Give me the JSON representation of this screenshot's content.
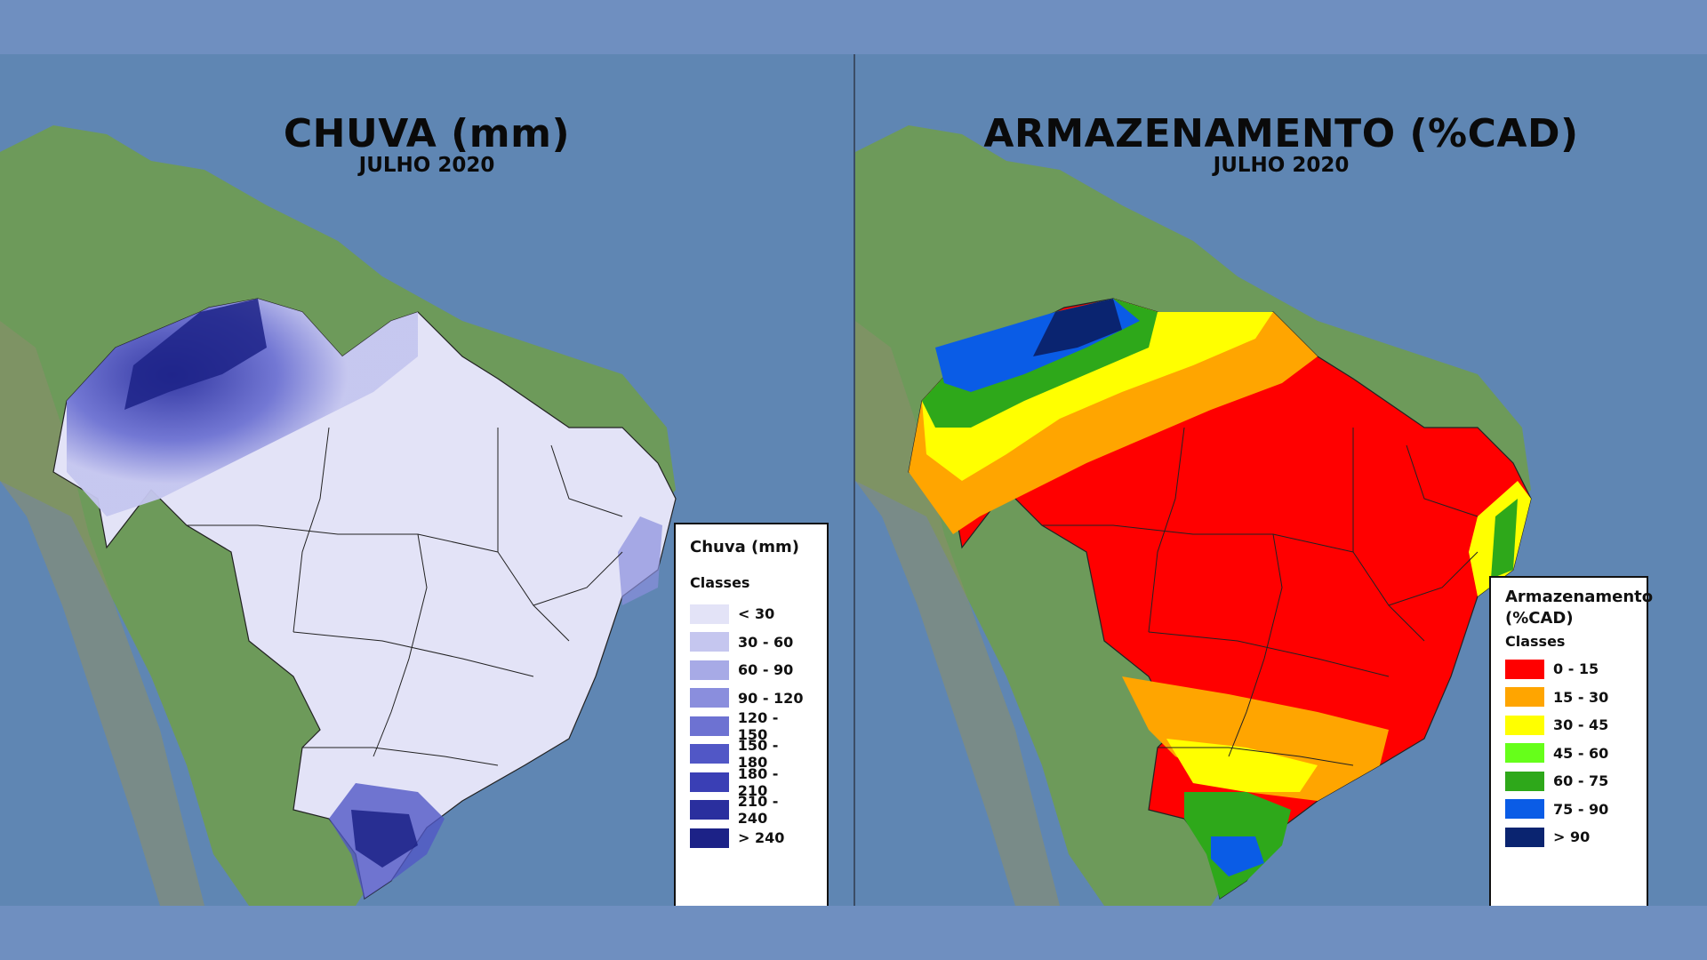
{
  "left_map": {
    "title": "CHUVA (mm)",
    "subtitle": "JULHO 2020",
    "legend": {
      "title": "Chuva (mm)",
      "subtitle": "Classes",
      "classes": [
        {
          "label": "< 30",
          "color": "#e3e3f7"
        },
        {
          "label": "30 - 60",
          "color": "#c5c6ef"
        },
        {
          "label": "60 - 90",
          "color": "#a7aae6"
        },
        {
          "label": "90 - 120",
          "color": "#8a8edd"
        },
        {
          "label": "120 - 150",
          "color": "#6d72d2"
        },
        {
          "label": "150 - 180",
          "color": "#5157c6"
        },
        {
          "label": "180 - 210",
          "color": "#3a3fb5"
        },
        {
          "label": "210 - 240",
          "color": "#2a2f9e"
        },
        {
          "label": "> 240",
          "color": "#1c2287"
        }
      ]
    }
  },
  "right_map": {
    "title": "ARMAZENAMENTO (%CAD)",
    "subtitle": "JULHO 2020",
    "legend": {
      "title": "Armazenamento (%CAD)",
      "subtitle": "Classes",
      "classes": [
        {
          "label": "0 - 15",
          "color": "#ff0000"
        },
        {
          "label": "15 - 30",
          "color": "#ffa500"
        },
        {
          "label": "30 - 45",
          "color": "#ffff00"
        },
        {
          "label": "45 - 60",
          "color": "#66ff1a"
        },
        {
          "label": "60 - 75",
          "color": "#2ea81a"
        },
        {
          "label": "75 - 90",
          "color": "#0a5ce6"
        },
        {
          "label": "> 90",
          "color": "#0a2470"
        }
      ]
    }
  },
  "colors": {
    "ocean": "#5f86b3",
    "land": "#6d9a5a",
    "background": "#6f8fc0"
  }
}
